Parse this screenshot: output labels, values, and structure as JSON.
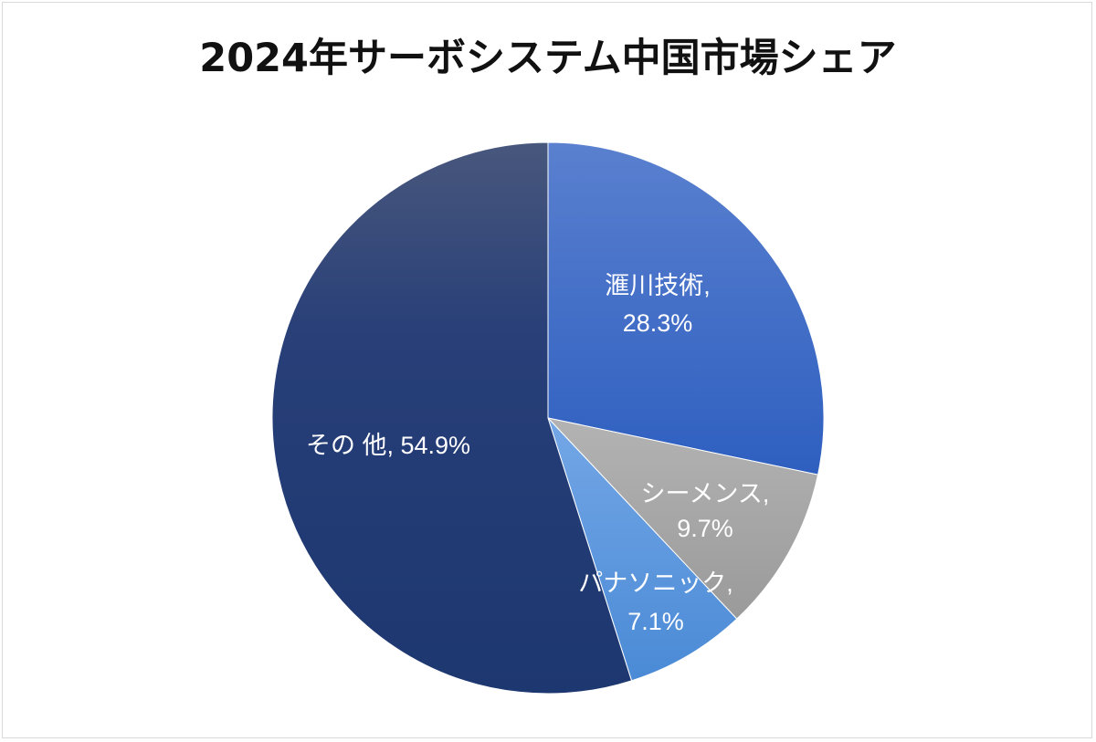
{
  "chart_data": {
    "type": "pie",
    "title": "2024年サーボシステム中国市場シェア",
    "start": "12 o'clock",
    "direction": "clockwise",
    "slices": [
      {
        "name": "滙川技術",
        "value": 28.3,
        "label_line1": "滙川技術,",
        "label_line2": "28.3%",
        "color": "#3a66c2"
      },
      {
        "name": "シーメンス",
        "value": 9.7,
        "label_line1": "シーメンス,",
        "label_line2": "9.7%",
        "color": "#a7a7a7"
      },
      {
        "name": "パナソニック",
        "value": 7.1,
        "label_line1": "パナソニック,",
        "label_line2": "7.1%",
        "color": "#5b9be0"
      },
      {
        "name": "その 他",
        "value": 54.9,
        "label_line1": "その 他, 54.9%",
        "label_line2": "",
        "color": "#25407e"
      }
    ]
  }
}
